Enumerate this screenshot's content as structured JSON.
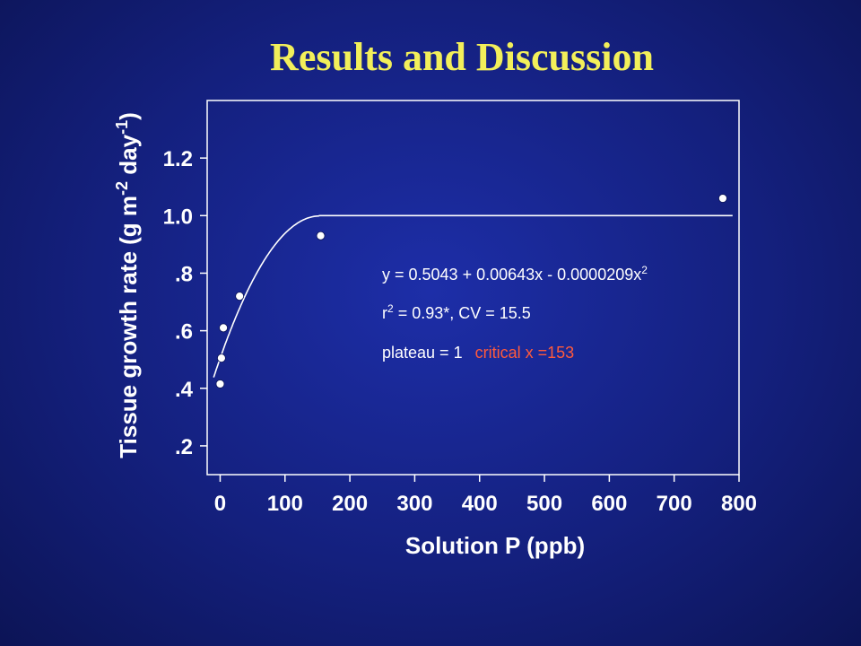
{
  "slide": {
    "title": "Results and Discussion"
  },
  "chart_data": {
    "type": "scatter",
    "title": "",
    "xlabel": "Solution P (ppb)",
    "ylabel": {
      "prefix": "Tissue growth rate (g m",
      "sup1": "-2",
      "mid": " day",
      "sup2": "-1",
      "suffix": ")"
    },
    "xlim": [
      -20,
      800
    ],
    "ylim": [
      0.1,
      1.4
    ],
    "x_ticks": [
      0,
      100,
      200,
      300,
      400,
      500,
      600,
      700,
      800
    ],
    "x_tick_labels": [
      "0",
      "100",
      "200",
      "300",
      "400",
      "500",
      "600",
      "700",
      "800"
    ],
    "y_ticks": [
      0.2,
      0.4,
      0.6,
      0.8,
      1.0,
      1.2
    ],
    "y_tick_labels": [
      ".2",
      ".4",
      ".6",
      ".8",
      "1.0",
      "1.2"
    ],
    "grid": false,
    "legend": "none",
    "series": [
      {
        "points": [
          {
            "x": 0,
            "y": 0.415
          },
          {
            "x": 2,
            "y": 0.505
          },
          {
            "x": 5,
            "y": 0.61
          },
          {
            "x": 30,
            "y": 0.72
          },
          {
            "x": 155,
            "y": 0.93
          },
          {
            "x": 775,
            "y": 1.06
          }
        ]
      }
    ],
    "fit": {
      "a": 0.5043,
      "b": 0.00643,
      "c": -2.09e-05,
      "x_start": -10,
      "x_critical": 153,
      "plateau": 1,
      "x_end": 790
    },
    "annotations": {
      "equation_main": "y = 0.5043 + 0.00643x - 0.0000209x",
      "equation_sup": "2",
      "r_prefix": "r",
      "r_sup": "2",
      "r_rest": " = 0.93*, CV = 15.5",
      "plateau_text": "plateau = 1",
      "critical_text": "critical x =153"
    },
    "colors": {
      "axes": "#ffffff",
      "points": "#ffffff",
      "fit_line": "#ffffff",
      "critical_text": "#ff5a3c",
      "title": "#f2ef5a"
    }
  }
}
